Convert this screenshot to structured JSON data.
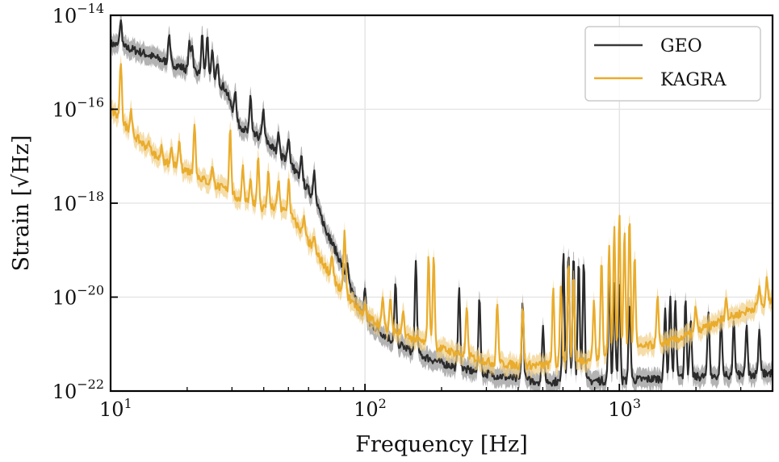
{
  "chart_data": {
    "type": "line",
    "title": "",
    "xlabel": "Frequency [Hz]",
    "ylabel": "Strain [√Hz]",
    "xscale": "log",
    "yscale": "log",
    "xlim": [
      10,
      4000
    ],
    "ylim": [
      1e-22,
      1e-14
    ],
    "grid": true,
    "x_ticks": [
      {
        "value": 10,
        "base": "10",
        "exp": "1"
      },
      {
        "value": 100,
        "base": "10",
        "exp": "2"
      },
      {
        "value": 1000,
        "base": "10",
        "exp": "3"
      }
    ],
    "y_ticks": [
      {
        "value": 1e-14,
        "base": "10",
        "exp": "−14"
      },
      {
        "value": 1e-16,
        "base": "10",
        "exp": "−16"
      },
      {
        "value": 1e-18,
        "base": "10",
        "exp": "−18"
      },
      {
        "value": 1e-20,
        "base": "10",
        "exp": "−20"
      },
      {
        "value": 1e-22,
        "base": "10",
        "exp": "−22"
      }
    ],
    "legend": {
      "placement": "top-right",
      "entries": [
        "GEO",
        "KAGRA"
      ]
    },
    "series": [
      {
        "name": "GEO",
        "color": "#2b2b2b",
        "band_color": "#9a9a9a",
        "band_factor": 1.6,
        "baseline_log10": [
          [
            1.0,
            -14.6
          ],
          [
            1.1,
            -14.75
          ],
          [
            1.2,
            -14.95
          ],
          [
            1.3,
            -15.15
          ],
          [
            1.4,
            -15.35
          ],
          [
            1.45,
            -15.55
          ],
          [
            1.5,
            -16.3
          ],
          [
            1.55,
            -16.55
          ],
          [
            1.6,
            -16.6
          ],
          [
            1.65,
            -16.9
          ],
          [
            1.7,
            -17.1
          ],
          [
            1.75,
            -17.5
          ],
          [
            1.8,
            -17.9
          ],
          [
            1.85,
            -18.6
          ],
          [
            1.9,
            -19.2
          ],
          [
            1.95,
            -19.9
          ],
          [
            2.0,
            -20.5
          ],
          [
            2.1,
            -20.9
          ],
          [
            2.2,
            -21.2
          ],
          [
            2.3,
            -21.4
          ],
          [
            2.4,
            -21.55
          ],
          [
            2.5,
            -21.65
          ],
          [
            2.6,
            -21.75
          ],
          [
            2.7,
            -21.8
          ],
          [
            2.8,
            -21.8
          ],
          [
            2.9,
            -21.78
          ],
          [
            3.0,
            -21.78
          ],
          [
            3.1,
            -21.75
          ],
          [
            3.2,
            -21.72
          ],
          [
            3.3,
            -21.7
          ],
          [
            3.4,
            -21.68
          ],
          [
            3.5,
            -21.65
          ],
          [
            3.6,
            -21.62
          ]
        ],
        "peaks": [
          [
            1.04,
            -14.1
          ],
          [
            1.23,
            -14.4
          ],
          [
            1.31,
            -14.55
          ],
          [
            1.32,
            -14.6
          ],
          [
            1.36,
            -14.4
          ],
          [
            1.38,
            -14.45
          ],
          [
            1.4,
            -14.7
          ],
          [
            1.42,
            -15.0
          ],
          [
            1.49,
            -15.6
          ],
          [
            1.55,
            -15.7
          ],
          [
            1.6,
            -16.0
          ],
          [
            1.66,
            -16.5
          ],
          [
            1.7,
            -16.6
          ],
          [
            1.75,
            -17.0
          ],
          [
            1.8,
            -17.3
          ],
          [
            1.85,
            -18.8
          ],
          [
            1.93,
            -19.3
          ],
          [
            2.0,
            -19.8
          ],
          [
            2.12,
            -19.7
          ],
          [
            2.2,
            -19.2
          ],
          [
            2.37,
            -19.8
          ],
          [
            2.45,
            -20.0
          ],
          [
            2.62,
            -20.1
          ],
          [
            2.7,
            -20.6
          ],
          [
            2.78,
            -19.0
          ],
          [
            2.8,
            -19.0
          ],
          [
            2.82,
            -19.1
          ],
          [
            2.84,
            -19.2
          ],
          [
            2.86,
            -19.2
          ],
          [
            2.96,
            -19.6
          ],
          [
            2.98,
            -19.7
          ],
          [
            3.0,
            -19.7
          ],
          [
            3.04,
            -20.1
          ],
          [
            3.18,
            -20.2
          ],
          [
            3.2,
            -20.0
          ],
          [
            3.22,
            -20.1
          ],
          [
            3.26,
            -20.0
          ],
          [
            3.28,
            -20.5
          ],
          [
            3.35,
            -20.3
          ],
          [
            3.4,
            -20.4
          ],
          [
            3.45,
            -20.5
          ],
          [
            3.5,
            -20.6
          ],
          [
            3.55,
            -20.7
          ]
        ]
      },
      {
        "name": "KAGRA",
        "color": "#e9ac2c",
        "band_color": "#f1cf86",
        "band_factor": 1.6,
        "baseline_log10": [
          [
            1.0,
            -16.0
          ],
          [
            1.1,
            -16.6
          ],
          [
            1.2,
            -17.1
          ],
          [
            1.3,
            -17.3
          ],
          [
            1.4,
            -17.6
          ],
          [
            1.45,
            -17.7
          ],
          [
            1.5,
            -17.9
          ],
          [
            1.55,
            -18.0
          ],
          [
            1.6,
            -18.1
          ],
          [
            1.65,
            -18.1
          ],
          [
            1.7,
            -18.2
          ],
          [
            1.75,
            -18.6
          ],
          [
            1.8,
            -19.0
          ],
          [
            1.85,
            -19.4
          ],
          [
            1.9,
            -19.8
          ],
          [
            2.0,
            -20.4
          ],
          [
            2.1,
            -20.7
          ],
          [
            2.2,
            -20.9
          ],
          [
            2.3,
            -21.1
          ],
          [
            2.4,
            -21.25
          ],
          [
            2.5,
            -21.4
          ],
          [
            2.6,
            -21.45
          ],
          [
            2.7,
            -21.45
          ],
          [
            2.8,
            -21.4
          ],
          [
            2.9,
            -21.3
          ],
          [
            3.0,
            -21.2
          ],
          [
            3.1,
            -21.05
          ],
          [
            3.2,
            -20.95
          ],
          [
            3.3,
            -20.75
          ],
          [
            3.4,
            -20.5
          ],
          [
            3.5,
            -20.3
          ],
          [
            3.6,
            -20.05
          ]
        ],
        "peaks": [
          [
            1.04,
            -15.0
          ],
          [
            1.08,
            -16.0
          ],
          [
            1.15,
            -16.7
          ],
          [
            1.2,
            -16.8
          ],
          [
            1.24,
            -16.8
          ],
          [
            1.27,
            -16.7
          ],
          [
            1.33,
            -16.3
          ],
          [
            1.4,
            -17.2
          ],
          [
            1.47,
            -16.4
          ],
          [
            1.52,
            -17.2
          ],
          [
            1.55,
            -17.5
          ],
          [
            1.58,
            -17.0
          ],
          [
            1.62,
            -17.3
          ],
          [
            1.66,
            -17.5
          ],
          [
            1.7,
            -17.5
          ],
          [
            1.76,
            -18.3
          ],
          [
            1.8,
            -18.7
          ],
          [
            1.87,
            -19.1
          ],
          [
            1.92,
            -18.6
          ],
          [
            2.0,
            -20.2
          ],
          [
            2.07,
            -20.0
          ],
          [
            2.1,
            -20.0
          ],
          [
            2.15,
            -20.3
          ],
          [
            2.25,
            -19.1
          ],
          [
            2.27,
            -19.1
          ],
          [
            2.4,
            -20.2
          ],
          [
            2.52,
            -20.1
          ],
          [
            2.62,
            -20.2
          ],
          [
            2.74,
            -19.8
          ],
          [
            2.77,
            -19.8
          ],
          [
            2.8,
            -19.2
          ],
          [
            2.82,
            -19.5
          ],
          [
            2.9,
            -20.1
          ],
          [
            2.93,
            -19.2
          ],
          [
            2.96,
            -18.9
          ],
          [
            2.98,
            -18.5
          ],
          [
            3.0,
            -18.2
          ],
          [
            3.02,
            -18.6
          ],
          [
            3.04,
            -18.3
          ],
          [
            3.06,
            -19.1
          ],
          [
            3.15,
            -20.0
          ],
          [
            3.3,
            -20.2
          ],
          [
            3.42,
            -20.0
          ],
          [
            3.55,
            -19.8
          ],
          [
            3.58,
            -19.6
          ]
        ]
      }
    ]
  }
}
